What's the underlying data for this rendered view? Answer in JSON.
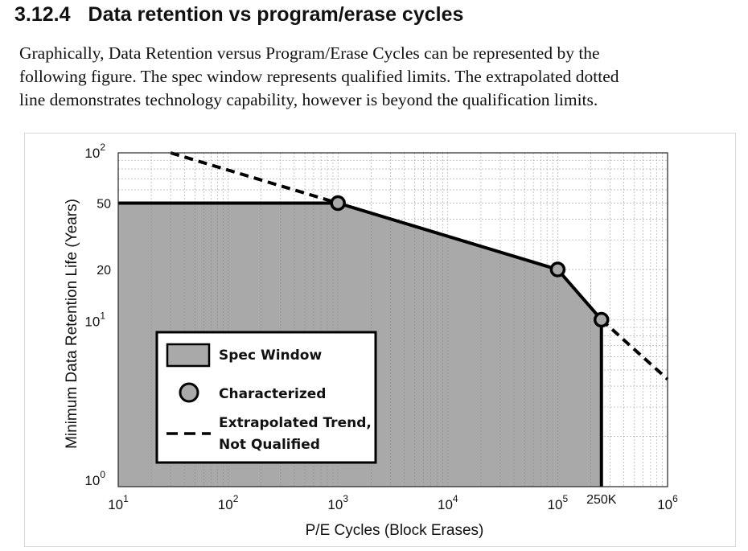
{
  "section": {
    "number": "3.12.4",
    "title": "Data retention vs program/erase cycles"
  },
  "paragraph_lines": [
    "Graphically, Data Retention versus Program/Erase Cycles can be represented by the",
    "following figure. The spec window represents qualified limits. The extrapolated dotted",
    "line demonstrates technology capability, however is beyond the qualification limits."
  ],
  "chart_data": {
    "type": "line",
    "xscale": "log",
    "yscale": "log",
    "xlabel": "P/E Cycles (Block Erases)",
    "ylabel": "Minimum Data Retention Life (Years)",
    "xlim": [
      10,
      1000000
    ],
    "ylim": [
      1,
      100
    ],
    "x_ticks": [
      {
        "value": 10,
        "base": "10",
        "exp": "1"
      },
      {
        "value": 100,
        "base": "10",
        "exp": "2"
      },
      {
        "value": 1000,
        "base": "10",
        "exp": "3"
      },
      {
        "value": 10000,
        "base": "10",
        "exp": "4"
      },
      {
        "value": 100000,
        "base": "10",
        "exp": "5"
      },
      {
        "value": 1000000,
        "base": "10",
        "exp": "6"
      }
    ],
    "x_extra_ticks": [
      {
        "value": 250000,
        "label": "250K"
      }
    ],
    "y_ticks": [
      {
        "value": 1,
        "base": "10",
        "exp": "0"
      },
      {
        "value": 10,
        "base": "10",
        "exp": "1"
      },
      {
        "value": 100,
        "base": "10",
        "exp": "2"
      }
    ],
    "y_extra_ticks": [
      {
        "value": 20,
        "label": "20"
      },
      {
        "value": 50,
        "label": "50"
      }
    ],
    "grid": true,
    "series": [
      {
        "name": "Spec Window",
        "style": "filled-area",
        "x": [
          10,
          1000,
          100000,
          250000,
          250000
        ],
        "y": [
          50,
          50,
          20,
          10,
          1
        ]
      },
      {
        "name": "Characterized",
        "style": "markers",
        "x": [
          1000,
          100000,
          250000
        ],
        "y": [
          50,
          20,
          10
        ]
      },
      {
        "name": "Extrapolated Trend, Not Qualified",
        "style": "dashed",
        "segments": [
          {
            "x": [
              30,
              1000
            ],
            "y": [
              100,
              50
            ]
          },
          {
            "x": [
              250000,
              1000000
            ],
            "y": [
              10,
              4.4
            ]
          }
        ]
      }
    ],
    "legend": {
      "position": "lower-left",
      "entries": [
        {
          "symbol": "box",
          "lines": [
            "Spec Window"
          ]
        },
        {
          "symbol": "circle",
          "lines": [
            "Characterized"
          ]
        },
        {
          "symbol": "dash",
          "lines": [
            "Extrapolated Trend,",
            "Not Qualified"
          ]
        }
      ]
    },
    "colors": {
      "fill": "#a9a9a9",
      "line": "#000000",
      "marker_face": "#a9a9a9",
      "grid": "#a0a0a0"
    }
  }
}
